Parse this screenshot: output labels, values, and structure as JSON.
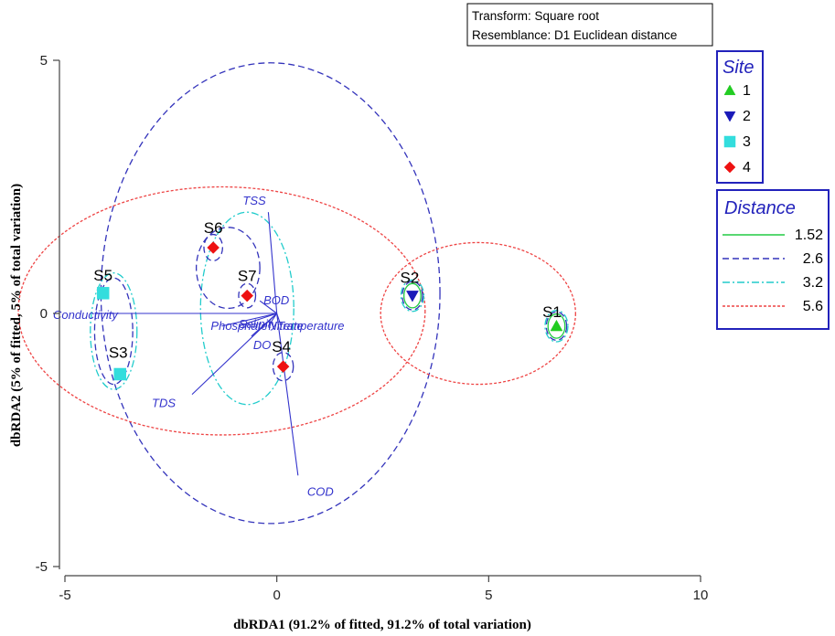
{
  "chart_data": {
    "type": "scatter",
    "xlabel": "dbRDA1 (91.2% of fitted, 91.2% of total variation)",
    "ylabel": "dbRDA2 (5% of fitted, 5% of total variation)",
    "xlim": [
      -5,
      10
    ],
    "ylim": [
      -5,
      5
    ],
    "x_ticks": [
      "-5",
      "0",
      "5",
      "10"
    ],
    "y_ticks": [
      "5",
      "0",
      "-5"
    ],
    "info_box": [
      "Transform: Square root",
      "Resemblance: D1 Euclidean distance"
    ],
    "points": [
      {
        "label": "S1",
        "x": 6.6,
        "y": -0.25,
        "site": "1"
      },
      {
        "label": "S2",
        "x": 3.2,
        "y": 0.35,
        "site": "2"
      },
      {
        "label": "S3",
        "x": -3.7,
        "y": -1.2,
        "site": "3"
      },
      {
        "label": "S4",
        "x": 0.15,
        "y": -1.05,
        "site": "4"
      },
      {
        "label": "S5",
        "x": -4.1,
        "y": 0.4,
        "site": "3"
      },
      {
        "label": "S6",
        "x": -1.5,
        "y": 1.3,
        "site": "4"
      },
      {
        "label": "S7",
        "x": -0.7,
        "y": 0.35,
        "site": "4"
      }
    ],
    "vectors": [
      {
        "name": "TSS",
        "x": -0.2,
        "y": 2.0
      },
      {
        "name": "COD",
        "x": 0.5,
        "y": -3.2
      },
      {
        "name": "Conductivity",
        "x": -4.3,
        "y": 0.0
      },
      {
        "name": "TDS",
        "x": -2.0,
        "y": -1.6
      },
      {
        "name": "BOD",
        "x": -0.4,
        "y": 0.25
      },
      {
        "name": "DO",
        "x": -0.6,
        "y": -0.45
      },
      {
        "name": "Salinity",
        "x": -0.9,
        "y": -0.25
      },
      {
        "name": "Phosphate",
        "x": -1.3,
        "y": -0.25
      },
      {
        "name": "Nitrate",
        "x": -0.2,
        "y": -0.25
      },
      {
        "name": "Temperature",
        "x": 0.1,
        "y": -0.25
      }
    ],
    "legend_site": {
      "title": "Site",
      "entries": [
        {
          "name": "1",
          "marker": "triangle-up",
          "color": "#22cc22"
        },
        {
          "name": "2",
          "marker": "triangle-down",
          "color": "#1a1ab8"
        },
        {
          "name": "3",
          "marker": "square",
          "color": "#33dddd"
        },
        {
          "name": "4",
          "marker": "diamond",
          "color": "#ee1111"
        }
      ]
    },
    "legend_distance": {
      "title": "Distance",
      "entries": [
        {
          "name": "1.52",
          "color": "#22cc44",
          "style": "solid"
        },
        {
          "name": "2.6",
          "color": "#3333bb",
          "style": "dashed"
        },
        {
          "name": "3.2",
          "color": "#22cccc",
          "style": "dashdot"
        },
        {
          "name": "5.6",
          "color": "#ee4444",
          "style": "dotted"
        }
      ]
    },
    "clusters": [
      {
        "distance": "2.6",
        "cx": -0.15,
        "cy": 0.4,
        "rx": 4.0,
        "ry": 4.55
      },
      {
        "distance": "5.6",
        "cx": -1.3,
        "cy": 0.05,
        "rx": 4.8,
        "ry": 2.45
      },
      {
        "distance": "5.6",
        "cx": 4.75,
        "cy": 0.0,
        "rx": 2.3,
        "ry": 1.4
      },
      {
        "distance": "3.2",
        "cx": -3.85,
        "cy": -0.35,
        "rx": 0.55,
        "ry": 1.15
      },
      {
        "distance": "2.6",
        "cx": -3.85,
        "cy": -0.35,
        "rx": 0.45,
        "ry": 1.05
      },
      {
        "distance": "3.2",
        "cx": -0.7,
        "cy": 0.1,
        "rx": 1.1,
        "ry": 1.9
      },
      {
        "distance": "2.6",
        "cx": -1.15,
        "cy": 0.9,
        "rx": 0.75,
        "ry": 0.8
      },
      {
        "distance": "1.52",
        "cx": 6.6,
        "cy": -0.25,
        "rx": 0.2,
        "ry": 0.24
      },
      {
        "distance": "2.6",
        "cx": 6.6,
        "cy": -0.25,
        "rx": 0.24,
        "ry": 0.28
      },
      {
        "distance": "3.2",
        "cx": 6.6,
        "cy": -0.25,
        "rx": 0.27,
        "ry": 0.31
      },
      {
        "distance": "1.52",
        "cx": 3.2,
        "cy": 0.35,
        "rx": 0.2,
        "ry": 0.24
      },
      {
        "distance": "2.6",
        "cx": 3.2,
        "cy": 0.35,
        "rx": 0.24,
        "ry": 0.28
      },
      {
        "distance": "3.2",
        "cx": 3.2,
        "cy": 0.35,
        "rx": 0.27,
        "ry": 0.31
      },
      {
        "distance": "2.6",
        "cx": 0.15,
        "cy": -1.05,
        "rx": 0.24,
        "ry": 0.28
      },
      {
        "distance": "2.6",
        "cx": -1.5,
        "cy": 1.3,
        "rx": 0.22,
        "ry": 0.26
      },
      {
        "distance": "2.6",
        "cx": -0.7,
        "cy": 0.35,
        "rx": 0.2,
        "ry": 0.24
      }
    ]
  }
}
